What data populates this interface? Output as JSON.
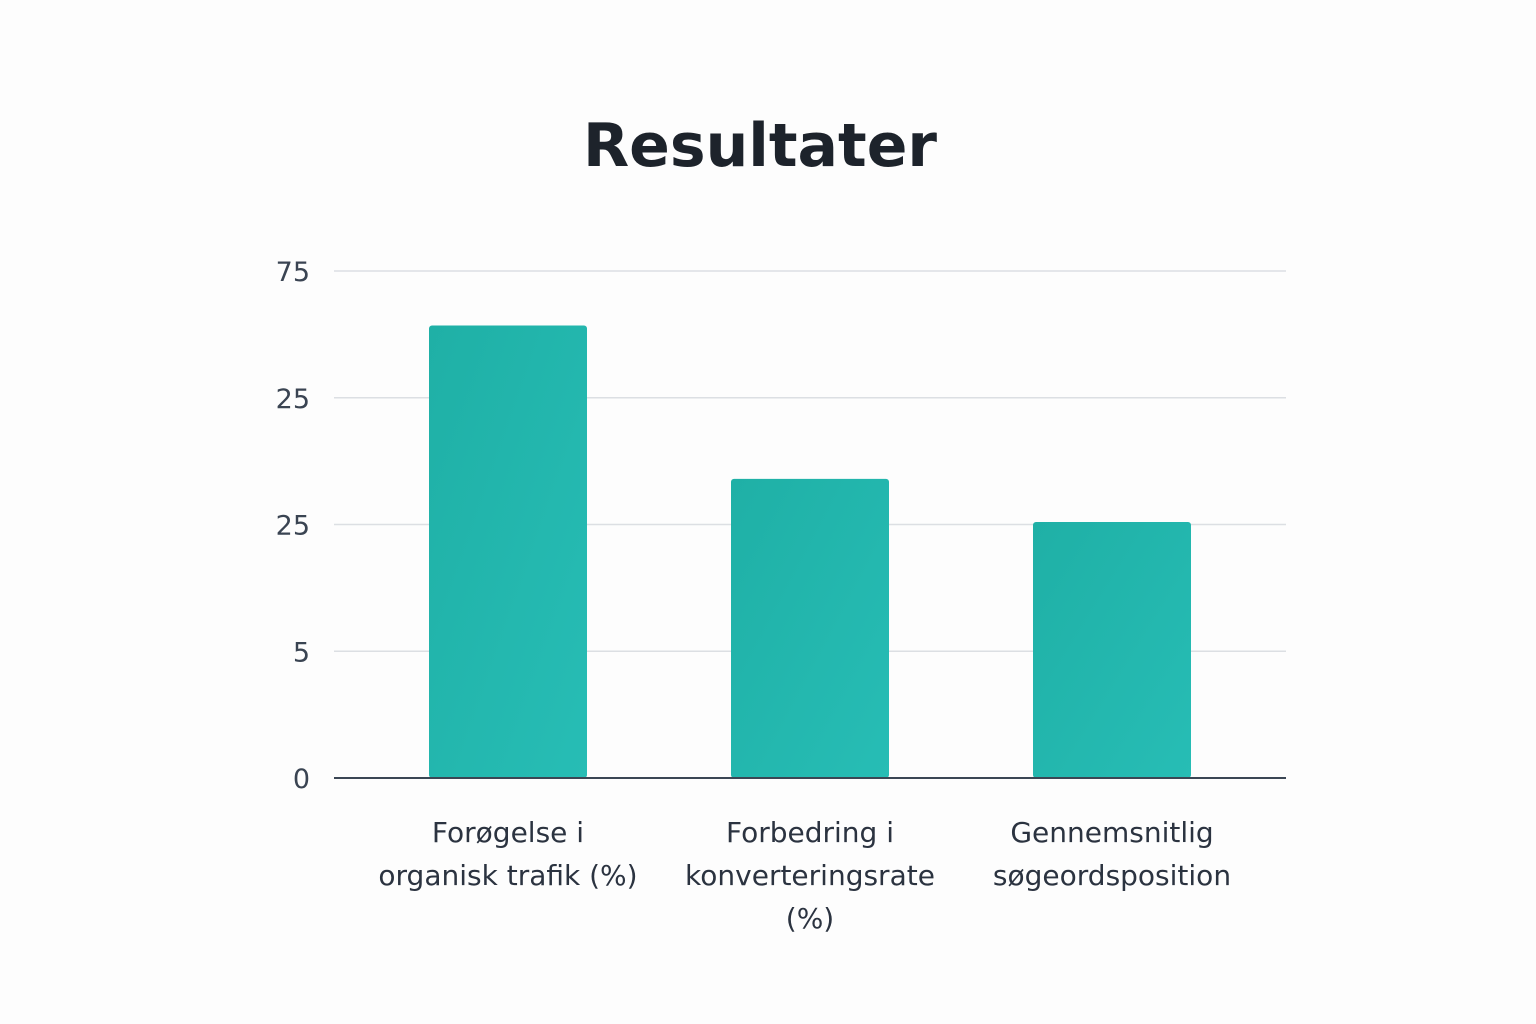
{
  "chart_data": {
    "type": "bar",
    "title": "Resultater",
    "xlabel": "",
    "ylabel": "",
    "y_tick_labels": [
      "0",
      "5",
      "25",
      "25",
      "75"
    ],
    "categories": [
      [
        "Forøgelse i",
        "organisk trafik (%)"
      ],
      [
        "Forbedring i",
        "konverteringsrate",
        "(%)"
      ],
      [
        "Gennemsnitlig",
        "søgeordsposition"
      ]
    ],
    "values": [
      3.57,
      2.36,
      2.02
    ],
    "value_note_units": "gridline index (0 = bottom, 4 = top)",
    "ylim": [
      0,
      4
    ],
    "grid": true,
    "legend": "none",
    "colors": {
      "bar": "#21b5ac",
      "bar_light": "#25bcb3",
      "grid": "#dcdfe3",
      "axis": "#3b4654"
    }
  }
}
